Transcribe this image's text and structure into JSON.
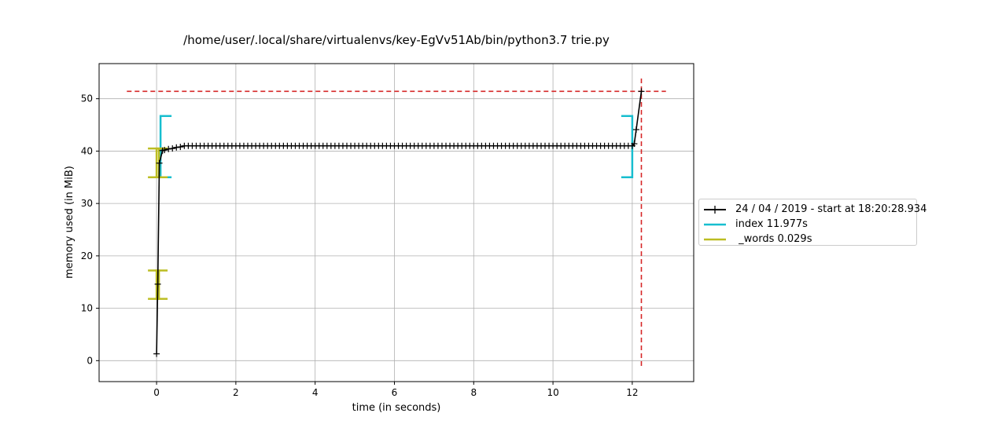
{
  "chart_data": {
    "type": "line",
    "title": "/home/user/.local/share/virtualenvs/key-EgVv51Ab/bin/python3.7 trie.py",
    "xlabel": "time (in seconds)",
    "ylabel": "memory used (in MiB)",
    "xlim": [
      -1.45,
      13.55
    ],
    "ylim": [
      -4,
      56.7
    ],
    "xticks": [
      0,
      2,
      4,
      6,
      8,
      10,
      12
    ],
    "yticks": [
      0,
      10,
      20,
      30,
      40,
      50
    ],
    "grid": true,
    "legend_position": "outside-right",
    "series": [
      {
        "name": "24 / 04 / 2019 - start at 18:20:28.934",
        "color": "#000000",
        "marker": "+",
        "x": [
          0.0,
          0.03,
          0.07,
          0.15,
          0.2,
          0.3,
          0.4,
          0.5,
          0.6,
          0.7,
          0.8,
          0.9,
          1.0,
          1.1,
          1.2,
          1.3,
          1.4,
          1.5,
          1.6,
          1.7,
          1.8,
          1.9,
          2.0,
          2.1,
          2.2,
          2.3,
          2.4,
          2.5,
          2.6,
          2.7,
          2.8,
          2.9,
          3.0,
          3.1,
          3.2,
          3.3,
          3.4,
          3.5,
          3.6,
          3.7,
          3.8,
          3.9,
          4.0,
          4.1,
          4.2,
          4.3,
          4.4,
          4.5,
          4.6,
          4.7,
          4.8,
          4.9,
          5.0,
          5.1,
          5.2,
          5.3,
          5.4,
          5.5,
          5.6,
          5.7,
          5.8,
          5.9,
          6.0,
          6.1,
          6.2,
          6.3,
          6.4,
          6.5,
          6.6,
          6.7,
          6.8,
          6.9,
          7.0,
          7.1,
          7.2,
          7.3,
          7.4,
          7.5,
          7.6,
          7.7,
          7.8,
          7.9,
          8.0,
          8.1,
          8.2,
          8.3,
          8.4,
          8.5,
          8.6,
          8.7,
          8.8,
          8.9,
          9.0,
          9.1,
          9.2,
          9.3,
          9.4,
          9.5,
          9.6,
          9.7,
          9.8,
          9.9,
          10.0,
          10.1,
          10.2,
          10.3,
          10.4,
          10.5,
          10.6,
          10.7,
          10.8,
          10.9,
          11.0,
          11.1,
          11.2,
          11.3,
          11.4,
          11.5,
          11.6,
          11.7,
          11.8,
          11.9,
          12.0,
          12.05,
          12.1,
          12.23
        ],
        "y": [
          1.3,
          14.6,
          37.7,
          40.1,
          40.2,
          40.4,
          40.5,
          40.7,
          40.8,
          41.0,
          41.0,
          41.0,
          41.0,
          41.0,
          41.0,
          41.0,
          41.0,
          41.0,
          41.0,
          41.0,
          41.0,
          41.0,
          41.0,
          41.0,
          41.0,
          41.0,
          41.0,
          41.0,
          41.0,
          41.0,
          41.0,
          41.0,
          41.0,
          41.0,
          41.0,
          41.0,
          41.0,
          41.0,
          41.0,
          41.0,
          41.0,
          41.0,
          41.0,
          41.0,
          41.0,
          41.0,
          41.0,
          41.0,
          41.0,
          41.0,
          41.0,
          41.0,
          41.0,
          41.0,
          41.0,
          41.0,
          41.0,
          41.0,
          41.0,
          41.0,
          41.0,
          41.0,
          41.0,
          41.0,
          41.0,
          41.0,
          41.0,
          41.0,
          41.0,
          41.0,
          41.0,
          41.0,
          41.0,
          41.0,
          41.0,
          41.0,
          41.0,
          41.0,
          41.0,
          41.0,
          41.0,
          41.0,
          41.0,
          41.0,
          41.0,
          41.0,
          41.0,
          41.0,
          41.0,
          41.0,
          41.0,
          41.0,
          41.0,
          41.0,
          41.0,
          41.0,
          41.0,
          41.0,
          41.0,
          41.0,
          41.0,
          41.0,
          41.0,
          41.0,
          41.0,
          41.0,
          41.0,
          41.0,
          41.0,
          41.0,
          41.0,
          41.0,
          41.0,
          41.0,
          41.0,
          41.0,
          41.0,
          41.0,
          41.0,
          41.0,
          41.0,
          41.0,
          41.0,
          41.4,
          44.1,
          51.4
        ]
      }
    ],
    "brackets": [
      {
        "name": "index 11.977s",
        "color": "#17becf",
        "x_start": 0.1,
        "x_end": 12.0,
        "y_start": 35.0,
        "y_end": 46.7
      },
      {
        "name": " _words 0.029s",
        "color": "#bcbd22",
        "x_start": 0.0,
        "x_end": 0.06,
        "y_start": 35.0,
        "y_end": 40.5
      },
      {
        "name": " _words 0.029s",
        "color": "#bcbd22",
        "x_start": 0.0,
        "x_end": 0.06,
        "y_start": 11.8,
        "y_end": 17.2
      }
    ],
    "max_lines": {
      "color": "#d62728",
      "y_value": 51.4,
      "y_line_xrange": [
        -0.75,
        12.85
      ],
      "x_value": 12.23,
      "x_line_yrange": [
        -1.0,
        54.0
      ]
    }
  },
  "legend": {
    "items": [
      {
        "label": "24 / 04 / 2019 - start at 18:20:28.934",
        "color": "#000000",
        "marker": true
      },
      {
        "label": "index 11.977s",
        "color": "#17becf",
        "marker": false
      },
      {
        "label": " _words 0.029s",
        "color": "#bcbd22",
        "marker": false
      }
    ]
  }
}
